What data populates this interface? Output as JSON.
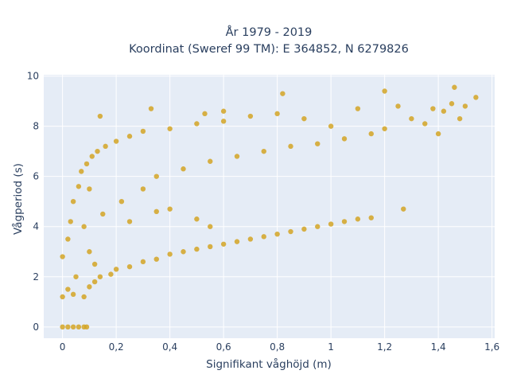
{
  "chart_data": {
    "type": "scatter",
    "title": "År 1979 - 2019",
    "subtitle": "Koordinat (Sweref 99 TM): E 364852, N 6279826",
    "xlabel": "Signifikant våghöjd (m)",
    "ylabel": "Vågperiod (s)",
    "xlim": [
      -0.07,
      1.61
    ],
    "ylim": [
      -0.45,
      10.05
    ],
    "x_ticks": [
      0,
      0.2,
      0.4,
      0.6,
      0.8,
      1,
      1.2,
      1.4,
      1.6
    ],
    "x_tick_labels": [
      "0",
      "0,2",
      "0,4",
      "0,6",
      "0,8",
      "1",
      "1,2",
      "1,4",
      "1,6"
    ],
    "y_ticks": [
      0,
      2,
      4,
      6,
      8,
      10
    ],
    "y_tick_labels": [
      "0",
      "2",
      "4",
      "6",
      "8",
      "10"
    ],
    "grid": true,
    "legend": "none",
    "colors": {
      "marker": "#d4a424",
      "plot_bg": "#e5ecf6",
      "grid": "#ffffff",
      "text": "#2a3f5f"
    },
    "series": [
      {
        "points": [
          [
            0.0,
            0.0
          ],
          [
            0.02,
            0.0
          ],
          [
            0.04,
            0.0
          ],
          [
            0.06,
            0.0
          ],
          [
            0.08,
            0.0
          ],
          [
            0.09,
            0.0
          ],
          [
            0.0,
            1.2
          ],
          [
            0.0,
            2.8
          ],
          [
            0.02,
            1.5
          ],
          [
            0.02,
            3.5
          ],
          [
            0.03,
            4.2
          ],
          [
            0.04,
            1.3
          ],
          [
            0.04,
            5.0
          ],
          [
            0.05,
            2.0
          ],
          [
            0.06,
            5.6
          ],
          [
            0.07,
            6.2
          ],
          [
            0.08,
            1.2
          ],
          [
            0.08,
            4.0
          ],
          [
            0.09,
            6.5
          ],
          [
            0.1,
            1.6
          ],
          [
            0.1,
            3.0
          ],
          [
            0.1,
            5.5
          ],
          [
            0.11,
            6.8
          ],
          [
            0.12,
            1.8
          ],
          [
            0.12,
            2.5
          ],
          [
            0.13,
            7.0
          ],
          [
            0.14,
            2.0
          ],
          [
            0.15,
            4.5
          ],
          [
            0.16,
            7.2
          ],
          [
            0.18,
            2.1
          ],
          [
            0.2,
            2.3
          ],
          [
            0.2,
            7.4
          ],
          [
            0.22,
            5.0
          ],
          [
            0.25,
            2.4
          ],
          [
            0.25,
            7.6
          ],
          [
            0.3,
            2.6
          ],
          [
            0.3,
            5.5
          ],
          [
            0.3,
            7.8
          ],
          [
            0.35,
            2.7
          ],
          [
            0.35,
            6.0
          ],
          [
            0.4,
            2.9
          ],
          [
            0.4,
            7.9
          ],
          [
            0.45,
            3.0
          ],
          [
            0.45,
            6.3
          ],
          [
            0.5,
            3.1
          ],
          [
            0.5,
            8.1
          ],
          [
            0.55,
            3.2
          ],
          [
            0.55,
            6.6
          ],
          [
            0.6,
            3.3
          ],
          [
            0.6,
            8.2
          ],
          [
            0.65,
            3.4
          ],
          [
            0.65,
            6.8
          ],
          [
            0.7,
            3.5
          ],
          [
            0.7,
            8.4
          ],
          [
            0.75,
            3.6
          ],
          [
            0.75,
            7.0
          ],
          [
            0.8,
            3.7
          ],
          [
            0.8,
            8.5
          ],
          [
            0.85,
            3.8
          ],
          [
            0.85,
            7.2
          ],
          [
            0.9,
            3.9
          ],
          [
            0.9,
            8.3
          ],
          [
            0.95,
            4.0
          ],
          [
            0.95,
            7.3
          ],
          [
            1.0,
            4.1
          ],
          [
            1.0,
            8.0
          ],
          [
            1.05,
            4.2
          ],
          [
            1.05,
            7.5
          ],
          [
            1.1,
            4.3
          ],
          [
            1.1,
            8.7
          ],
          [
            1.15,
            4.35
          ],
          [
            1.15,
            7.7
          ],
          [
            1.2,
            7.9
          ],
          [
            1.2,
            9.4
          ],
          [
            1.25,
            8.8
          ],
          [
            1.27,
            4.7
          ],
          [
            1.3,
            8.3
          ],
          [
            1.35,
            8.1
          ],
          [
            1.38,
            8.7
          ],
          [
            1.4,
            7.7
          ],
          [
            1.42,
            8.6
          ],
          [
            1.45,
            8.9
          ],
          [
            1.46,
            9.55
          ],
          [
            1.48,
            8.3
          ],
          [
            1.5,
            8.8
          ],
          [
            1.54,
            9.15
          ],
          [
            0.25,
            4.2
          ],
          [
            0.35,
            4.6
          ],
          [
            0.4,
            4.7
          ],
          [
            0.5,
            4.3
          ],
          [
            0.55,
            4.0
          ],
          [
            0.33,
            8.7
          ],
          [
            0.82,
            9.3
          ],
          [
            0.14,
            8.4
          ],
          [
            0.53,
            8.5
          ],
          [
            0.6,
            8.6
          ]
        ]
      }
    ]
  }
}
